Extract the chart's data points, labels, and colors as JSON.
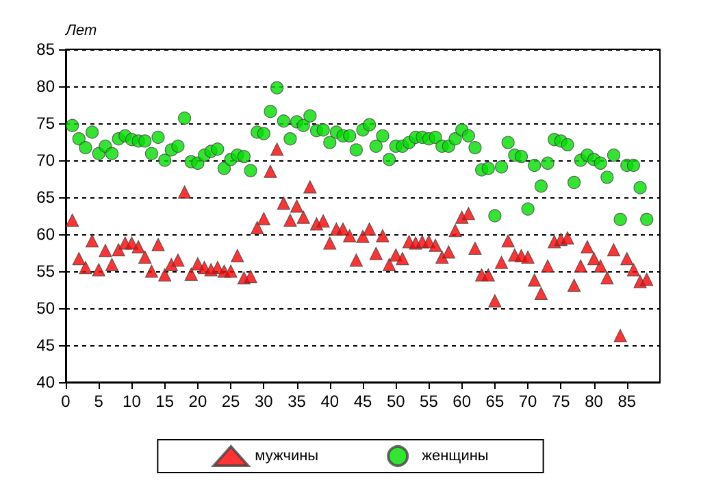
{
  "chart_data": {
    "type": "scatter",
    "ylabel": "Лет",
    "x": [
      1,
      2,
      3,
      4,
      5,
      6,
      7,
      8,
      9,
      10,
      11,
      12,
      13,
      14,
      15,
      16,
      17,
      18,
      19,
      20,
      21,
      22,
      23,
      24,
      25,
      26,
      27,
      28,
      29,
      30,
      31,
      32,
      33,
      34,
      35,
      36,
      37,
      38,
      39,
      40,
      41,
      42,
      43,
      44,
      45,
      46,
      47,
      48,
      49,
      50,
      51,
      52,
      53,
      54,
      55,
      56,
      57,
      58,
      59,
      60,
      61,
      62,
      63,
      64,
      65,
      66,
      67,
      68,
      69,
      70,
      71,
      72,
      73,
      74,
      75,
      76,
      77,
      78,
      79,
      80,
      81,
      82,
      83,
      84,
      85,
      86,
      87,
      88
    ],
    "series": [
      {
        "name": "мужчины",
        "color": "#ff0000",
        "marker": "triangle",
        "values": [
          61.9,
          56.7,
          55.5,
          59.1,
          55.2,
          57.8,
          55.9,
          57.9,
          58.8,
          58.8,
          58.3,
          56.9,
          55,
          58.6,
          54.5,
          55.9,
          56.5,
          65.7,
          54.6,
          56,
          55.5,
          55.2,
          55.5,
          55,
          55,
          57.1,
          54.1,
          54.3,
          60.9,
          62.1,
          68.5,
          71.5,
          64.2,
          61.9,
          63.8,
          62.3,
          66.4,
          61.4,
          61.8,
          58.8,
          60.7,
          60.7,
          59.8,
          56.5,
          59.7,
          60.7,
          57.4,
          59.8,
          55.9,
          57.2,
          56.7,
          59,
          58.8,
          59,
          59,
          58.5,
          56.9,
          57.6,
          60.5,
          62.3,
          62.8,
          58.1,
          54.5,
          54.5,
          51,
          56.2,
          59.1,
          57.2,
          57.1,
          56.9,
          53.8,
          52,
          55.7,
          59,
          59.3,
          59.5,
          53.1,
          55.7,
          58.3,
          56.7,
          55.7,
          54.1,
          57.9,
          46.3,
          56.7,
          55.2,
          53.6,
          53.9
        ]
      },
      {
        "name": "женщины",
        "color": "#00dd00",
        "marker": "circle",
        "values": [
          74.7,
          72.9,
          71.7,
          73.8,
          70.9,
          71.9,
          70.9,
          72.9,
          73.3,
          72.8,
          72.6,
          72.6,
          70.9,
          73.1,
          70,
          71.4,
          71.9,
          75.7,
          69.8,
          69.6,
          70.7,
          71.2,
          71.5,
          68.9,
          70.1,
          70.7,
          70.5,
          68.6,
          73.8,
          73.6,
          76.6,
          79.8,
          75.3,
          72.9,
          75.2,
          74.7,
          76,
          74,
          74.1,
          72.4,
          73.8,
          73.3,
          73.3,
          71.4,
          74.1,
          74.8,
          71.9,
          73.3,
          70.1,
          71.9,
          71.9,
          72.4,
          73.1,
          73.1,
          72.9,
          73.1,
          71.9,
          71.9,
          72.9,
          74.1,
          73.3,
          71.7,
          68.7,
          68.9,
          62.5,
          69.1,
          72.4,
          70.7,
          70.5,
          63.4,
          69.3,
          66.5,
          69.6,
          72.8,
          72.6,
          72.1,
          67,
          70,
          70.7,
          70.1,
          69.6,
          67.7,
          70.7,
          62,
          69.3,
          69.3,
          66.3,
          62
        ]
      }
    ],
    "xlim": [
      0,
      90
    ],
    "xticks": [
      0,
      5,
      10,
      15,
      20,
      25,
      30,
      35,
      40,
      45,
      50,
      55,
      60,
      65,
      70,
      75,
      80,
      85
    ],
    "ylim": [
      40,
      85
    ],
    "yticks": [
      40,
      45,
      50,
      55,
      60,
      65,
      70,
      75,
      80,
      85
    ],
    "grid": "y",
    "legend": "bottom"
  }
}
